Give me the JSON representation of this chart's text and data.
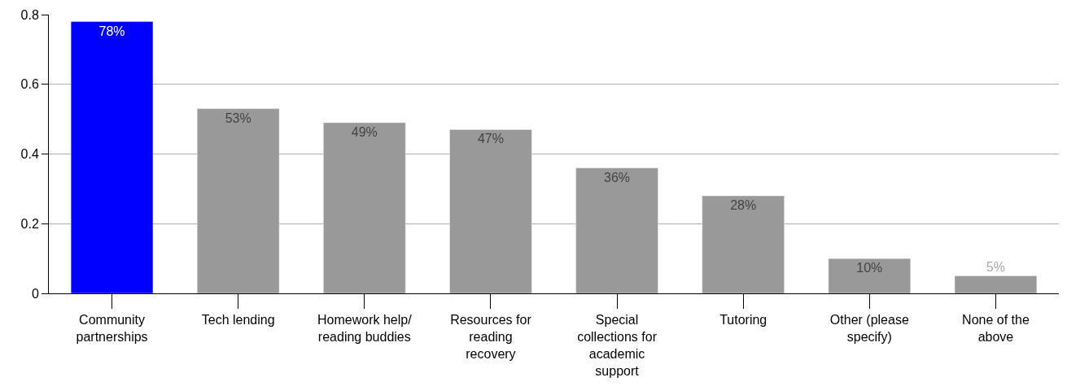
{
  "chart_data": {
    "type": "bar",
    "categories": [
      "Community partnerships",
      "Tech lending",
      "Homework help/ reading buddies",
      "Resources for reading recovery",
      "Special collections for academic support",
      "Tutoring",
      "Other (please specify)",
      "None of the above"
    ],
    "values": [
      0.78,
      0.53,
      0.49,
      0.47,
      0.36,
      0.28,
      0.1,
      0.05
    ],
    "colors": [
      "#0000ff",
      "#999999",
      "#999999",
      "#999999",
      "#999999",
      "#999999",
      "#999999",
      "#999999"
    ],
    "value_labels": [
      "78%",
      "53%",
      "49%",
      "47%",
      "36%",
      "28%",
      "10%",
      "5%"
    ],
    "ylim": [
      0,
      0.8
    ],
    "yticks": [
      0,
      0.2,
      0.4,
      0.6,
      0.8
    ],
    "grid": "y",
    "legend": false
  }
}
